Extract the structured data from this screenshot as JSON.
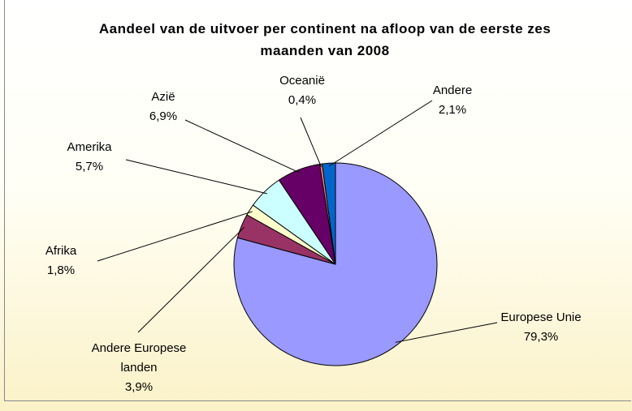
{
  "chart_data": {
    "type": "pie",
    "title": "Aandeel van de uitvoer per continent na afloop van de eerste zes maanden van 2008",
    "categories": [
      "Europese Unie",
      "Andere Europese landen",
      "Afrika",
      "Amerika",
      "Azië",
      "Oceanië",
      "Andere"
    ],
    "values": [
      79.3,
      3.9,
      1.8,
      5.7,
      6.9,
      0.4,
      2.1
    ],
    "value_labels": [
      "79,3%",
      "3,9%",
      "1,8%",
      "5,7%",
      "6,9%",
      "0,4%",
      "2,1%"
    ],
    "colors": [
      "#9999ff",
      "#993366",
      "#ffffcc",
      "#ccffff",
      "#660066",
      "#ff8080",
      "#0066cc"
    ]
  }
}
